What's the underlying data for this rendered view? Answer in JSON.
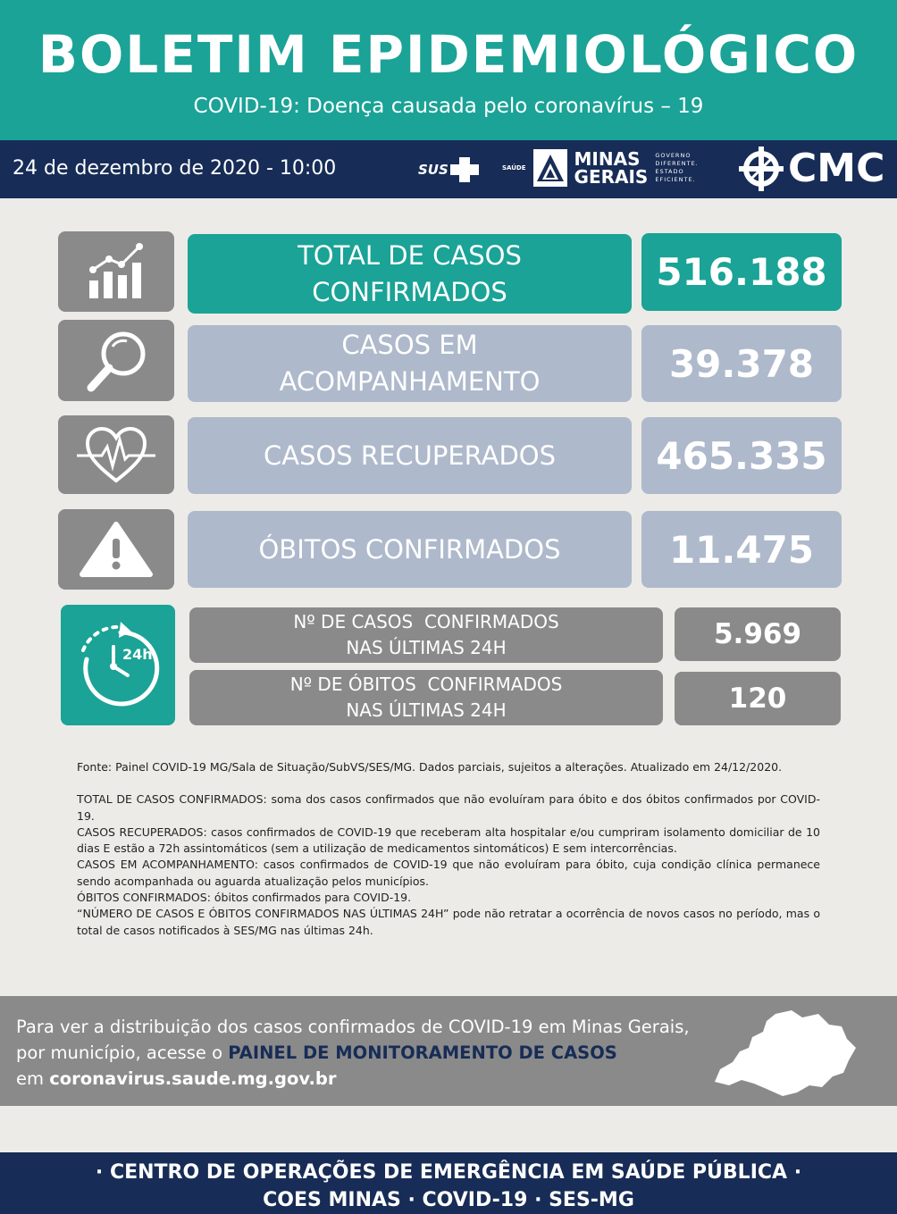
{
  "header": {
    "title": "BOLETIM EPIDEMIOLÓGICO",
    "subtitle": "COVID-19: Doença causada pelo coronavírus – 19"
  },
  "bar": {
    "date": "24 de dezembro de 2020 - 10:00",
    "logos": {
      "sus": "SUS",
      "saude": "SAÚDE",
      "minas_gerais": [
        "MINAS",
        "GERAIS"
      ],
      "governo": [
        "GOVERNO",
        "DIFERENTE.",
        "ESTADO",
        "EFICIENTE."
      ],
      "cmc": "CMC"
    }
  },
  "stats": [
    {
      "icon": "chart-growth-icon",
      "label_lines": [
        "TOTAL DE CASOS",
        "CONFIRMADOS"
      ],
      "value": "516.188"
    },
    {
      "icon": "magnifier-icon",
      "label_lines": [
        "CASOS EM",
        "ACOMPANHAMENTO"
      ],
      "value": "39.378"
    },
    {
      "icon": "heart-pulse-icon",
      "label_lines": [
        "CASOS RECUPERADOS"
      ],
      "value": "465.335"
    },
    {
      "icon": "warning-icon",
      "label_lines": [
        "ÓBITOS CONFIRMADOS"
      ],
      "value": "11.475"
    }
  ],
  "last24h": {
    "icon": "clock-24h-icon",
    "rows": [
      {
        "label_lines": [
          "Nº DE CASOS  CONFIRMADOS",
          "NAS ÚLTIMAS 24H"
        ],
        "value": "5.969"
      },
      {
        "label_lines": [
          "Nº DE ÓBITOS  CONFIRMADOS",
          "NAS ÚLTIMAS 24H"
        ],
        "value": "120"
      }
    ]
  },
  "notes": {
    "source": "Fonte: Painel COVID-19 MG/Sala de Situação/SubVS/SES/MG. Dados parciais, sujeitos a alterações. Atualizado em 24/12/2020.",
    "definitions": [
      "TOTAL DE  CASOS CONFIRMADOS: soma dos casos confirmados que não evoluíram para óbito e dos óbitos confirmados por COVID-19.",
      "CASOS RECUPERADOS: casos confirmados de COVID-19 que receberam alta hospitalar e/ou cumpriram isolamento domiciliar de 10 dias E estão a 72h assintomáticos (sem a utilização de medicamentos sintomáticos) E sem intercorrências.",
      "CASOS EM ACOMPANHAMENTO: casos confirmados de COVID-19 que não evoluíram para óbito, cuja condição clínica permanece sendo acompanhada ou aguarda atualização pelos municípios.",
      "ÓBITOS CONFIRMADOS: óbitos confirmados para COVID-19.",
      "“NÚMERO DE CASOS E ÓBITOS CONFIRMADOS NAS ÚLTIMAS 24H” pode não retratar a ocorrência de novos casos no período, mas o total de casos notificados à SES/MG nas últimas 24h."
    ]
  },
  "info": {
    "text1": "Para ver a distribuição dos casos confirmados de COVID-19 em Minas Gerais, por município, acesse o ",
    "link": "PAINEL DE MONITORAMENTO DE CASOS",
    "text2": "em ",
    "url": "coronavirus.saude.mg.gov.br"
  },
  "footer": {
    "line1": "· CENTRO DE OPERAÇÕES DE EMERGÊNCIA EM SAÚDE PÚBLICA ·",
    "line2": "COES MINAS · COVID-19 · SES-MG"
  },
  "colors": {
    "teal": "#1aa396",
    "navy": "#172c56",
    "light_blue": "#aeb9cb",
    "grey": "#8a8a8a"
  }
}
